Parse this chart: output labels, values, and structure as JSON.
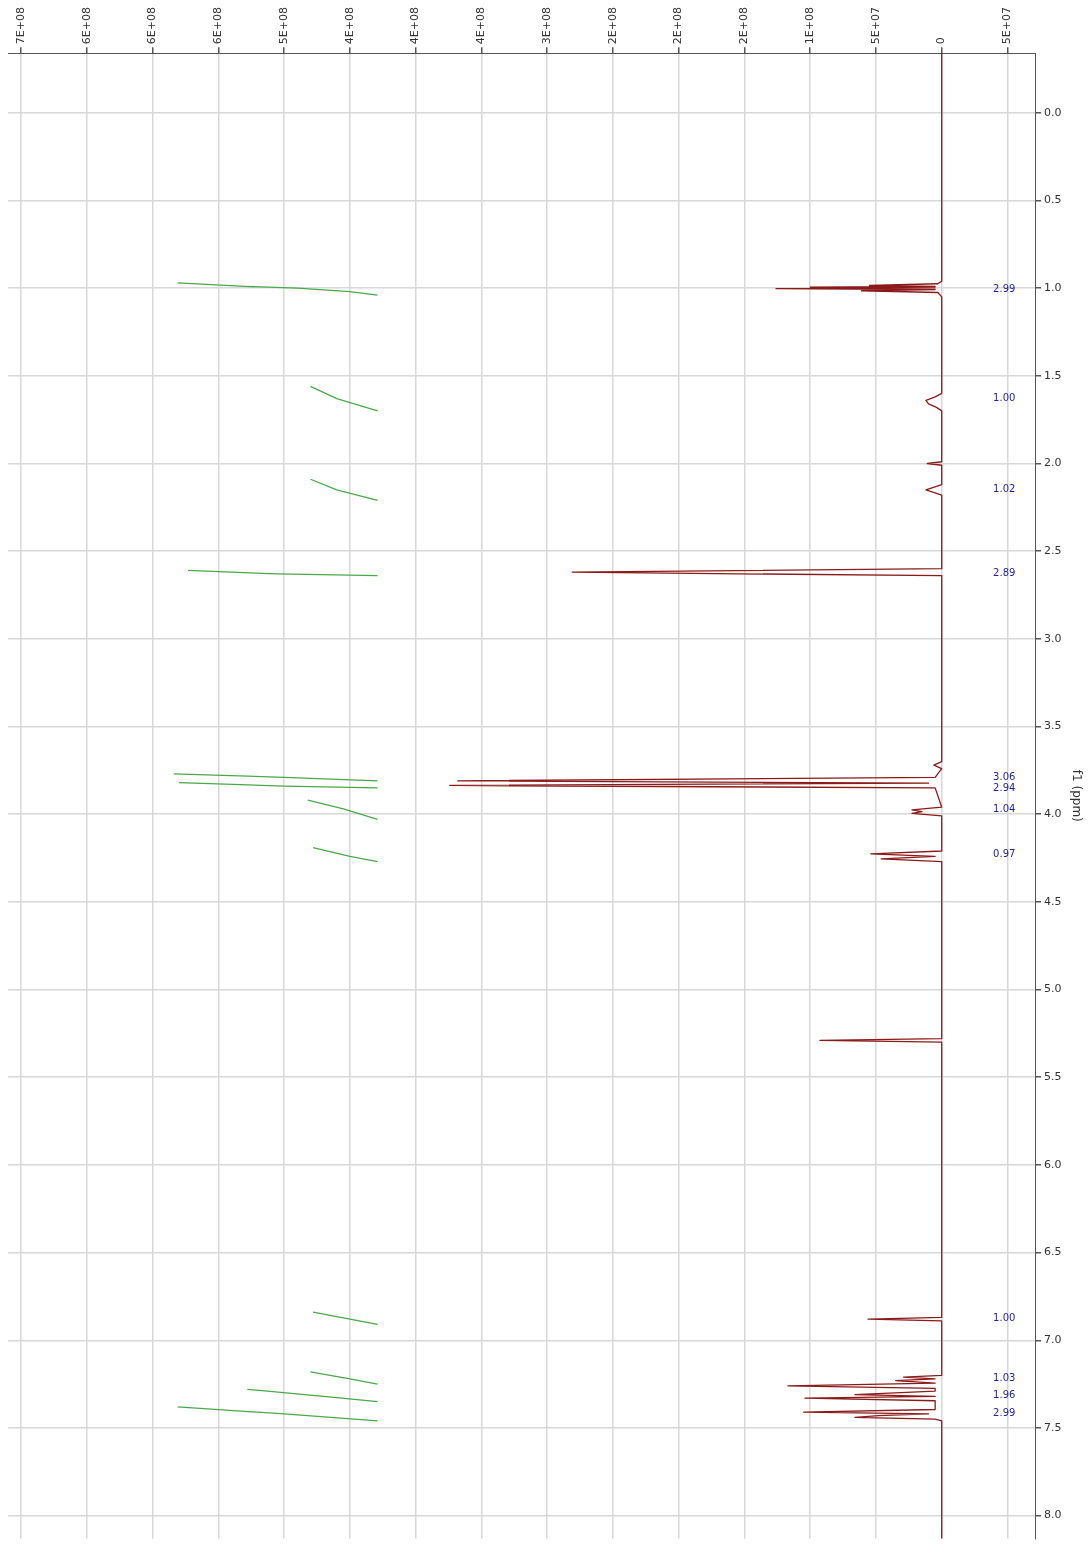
{
  "chart_data": {
    "type": "line",
    "orientation": "horizontal",
    "ylabel": "f1 (ppm)",
    "grid": true,
    "marker": "none",
    "line_style": "solid",
    "xlim": [
      710000000,
      -71000000
    ],
    "xticks": [
      {
        "value": 700000000,
        "label": "7E+08"
      },
      {
        "value": 650000000,
        "label": "6E+08"
      },
      {
        "value": 600000000,
        "label": "6E+08"
      },
      {
        "value": 550000000,
        "label": "6E+08"
      },
      {
        "value": 500000000,
        "label": "5E+08"
      },
      {
        "value": 450000000,
        "label": "4E+08"
      },
      {
        "value": 400000000,
        "label": "4E+08"
      },
      {
        "value": 350000000,
        "label": "4E+08"
      },
      {
        "value": 300000000,
        "label": "3E+08"
      },
      {
        "value": 250000000,
        "label": "2E+08"
      },
      {
        "value": 200000000,
        "label": "2E+08"
      },
      {
        "value": 150000000,
        "label": "2E+08"
      },
      {
        "value": 100000000,
        "label": "1E+08"
      },
      {
        "value": 50000000,
        "label": "5E+07"
      },
      0,
      {
        "value": -50000000,
        "label": "5E+07"
      }
    ],
    "ylim": [
      8.13,
      -0.34
    ],
    "yticks": [
      {
        "value": 0,
        "label": "0.0"
      },
      0.5,
      {
        "value": 1,
        "label": "1.0"
      },
      1.5,
      {
        "value": 2,
        "label": "2.0"
      },
      2.5,
      {
        "value": 3,
        "label": "3.0"
      },
      3.5,
      {
        "value": 4,
        "label": "4.0"
      },
      4.5,
      {
        "value": 5,
        "label": "5.0"
      },
      5.5,
      {
        "value": 6,
        "label": "6.0"
      },
      6.5,
      {
        "value": 7,
        "label": "7.0"
      },
      7.5,
      {
        "value": 8,
        "label": "8.0"
      }
    ],
    "series": [
      {
        "color": "#8b1a1a",
        "x": [
          -0.34,
          0.96,
          0.975,
          0.985,
          0.99,
          0.995,
          0.999,
          1.003,
          1.008,
          1.015,
          1.025,
          1.05,
          1.6,
          1.62,
          1.64,
          1.66,
          1.68,
          1.7,
          1.99,
          2.0,
          2.01,
          2.12,
          2.15,
          2.18,
          2.6,
          2.62,
          2.64,
          3.7,
          3.72,
          3.74,
          3.79,
          3.81,
          3.823,
          3.836,
          3.85,
          3.96,
          3.975,
          3.985,
          3.995,
          4.01,
          4.21,
          4.226,
          4.24,
          4.255,
          4.27,
          5.28,
          5.29,
          5.3,
          6.87,
          6.88,
          6.89,
          7.2,
          7.21,
          7.22,
          7.23,
          7.245,
          7.26,
          7.275,
          7.29,
          7.31,
          7.32,
          7.33,
          7.345,
          7.395,
          7.41,
          7.42,
          7.43,
          7.44,
          7.45,
          7.46,
          8.13
        ],
        "values": [
          0,
          0,
          3000000,
          55000000,
          5000000,
          100000000,
          5000000,
          126000000,
          5000000,
          61000000,
          3000000,
          0,
          0,
          5000000,
          12000000,
          10000000,
          4000000,
          0,
          0,
          11000000,
          0,
          0,
          12000000,
          0,
          0,
          281000000,
          0,
          0,
          6000000,
          0,
          5000000,
          368000000,
          10000000,
          374000000,
          5000000,
          0,
          22600000,
          15000000,
          22600000,
          0,
          0,
          54000000,
          5000000,
          46000000,
          0,
          0,
          92600000,
          0,
          0,
          56000000,
          0,
          0,
          29000000,
          5000000,
          35000000,
          5000000,
          117000000,
          5000000,
          5000000,
          66000000,
          5000000,
          104000000,
          5000000,
          5000000,
          105000000,
          10000000,
          48000000,
          66000000,
          5000000,
          0,
          0
        ]
      },
      {
        "color": "#4aa84a",
        "x": [
          0.97,
          0.99,
          1.0,
          1.02,
          1.04,
          1.05,
          1.56,
          1.63,
          1.7,
          1.75,
          2.09,
          2.15,
          2.21,
          2.3,
          2.61,
          2.63,
          2.64,
          2.7,
          3.77,
          3.79,
          3.81,
          3.815,
          3.82,
          3.84,
          3.85,
          3.88,
          3.92,
          3.97,
          4.03,
          4.1,
          4.19,
          4.24,
          4.27,
          5.0,
          6.84,
          6.88,
          6.91,
          7.0,
          7.18,
          7.22,
          7.25,
          7.26,
          7.28,
          7.32,
          7.35,
          7.36,
          7.38,
          7.42,
          7.46
        ],
        "values": [
          581000000,
          530000000,
          490000000,
          450000000,
          429000000,
          null,
          480000000,
          460000000,
          429000000,
          null,
          480000000,
          460000000,
          429000000,
          null,
          573000000,
          505000000,
          429000000,
          null,
          584000000,
          500000000,
          429000000,
          null,
          580000000,
          500000000,
          429000000,
          null,
          482000000,
          455000000,
          429000000,
          null,
          478000000,
          450000000,
          429000000,
          null,
          478000000,
          450000000,
          429000000,
          null,
          480000000,
          450000000,
          429000000,
          null,
          528000000,
          470000000,
          429000000,
          null,
          581000000,
          500000000,
          429000000
        ]
      }
    ],
    "annotations": [
      "2.99",
      "1.00",
      "1.02",
      "2.89",
      "3.06",
      "2.94",
      "1.04",
      "0.97",
      "1.00",
      "1.03",
      "1.96",
      "2.99"
    ]
  }
}
